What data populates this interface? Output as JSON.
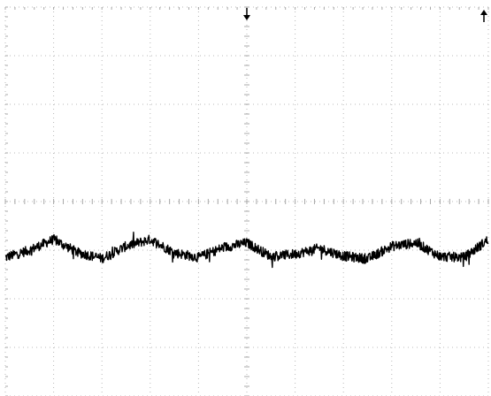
{
  "chart_data": {
    "type": "line",
    "title": "",
    "xlabel": "",
    "ylabel": "",
    "grid": true,
    "grid_divisions": {
      "horizontal": 10,
      "vertical": 8
    },
    "minor_ticks_per_division": 5,
    "xlim": [
      0,
      10
    ],
    "ylim": [
      -4,
      4
    ],
    "trigger_marker": {
      "x": 5,
      "symbol": "down-arrow"
    },
    "level_marker": {
      "y": 4,
      "symbol": "up-arrow",
      "side": "right"
    },
    "series": [
      {
        "color": "#000000",
        "baseline": -0.95,
        "ripple_amplitude": 0.2,
        "ripple_cycles": 5,
        "noise_amplitude": 0.1,
        "x": [
          0.0,
          0.5,
          1.0,
          1.5,
          2.0,
          2.5,
          3.0,
          3.5,
          4.0,
          4.5,
          5.0,
          5.5,
          6.0,
          6.5,
          7.0,
          7.5,
          8.0,
          8.5,
          9.0,
          9.5,
          10.0
        ],
        "y": [
          -1.15,
          -1.0,
          -0.78,
          -1.05,
          -1.17,
          -0.92,
          -0.78,
          -1.05,
          -1.15,
          -0.95,
          -0.85,
          -1.13,
          -1.08,
          -0.96,
          -1.12,
          -1.18,
          -0.92,
          -0.85,
          -1.13,
          -1.15,
          -0.78
        ]
      }
    ]
  }
}
